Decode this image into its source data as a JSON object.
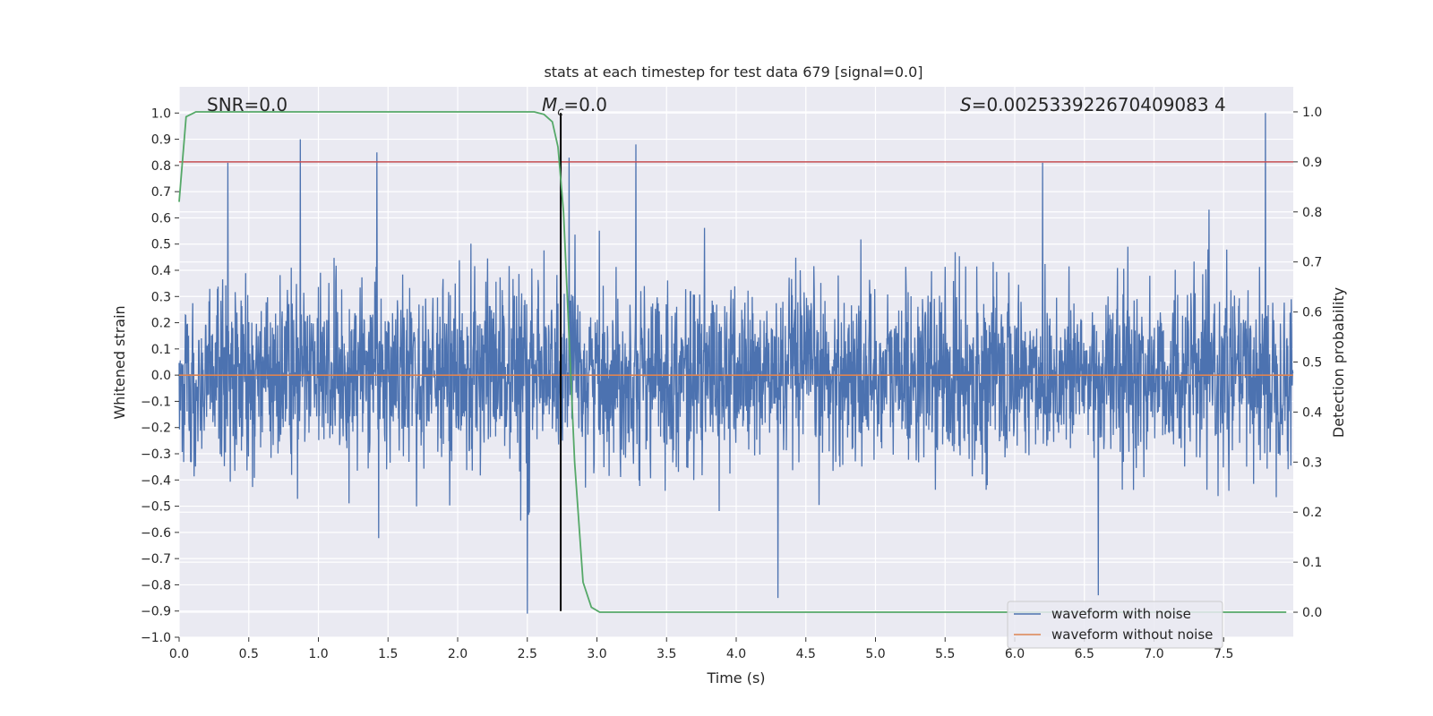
{
  "chart_data": {
    "type": "line",
    "title": "stats at each timestep for test data 679 [signal=0.0]",
    "xlabel": "Time (s)",
    "ylabel_left": "Whitened strain",
    "ylabel_right": "Detection probability",
    "xlim": [
      0.0,
      8.0
    ],
    "ylim_left": [
      -1.0,
      1.1
    ],
    "ylim_right": [
      -0.05,
      1.05
    ],
    "x_ticks": [
      "0.0",
      "0.5",
      "1.0",
      "1.5",
      "2.0",
      "2.5",
      "3.0",
      "3.5",
      "4.0",
      "4.5",
      "5.0",
      "5.5",
      "6.0",
      "6.5",
      "7.0",
      "7.5"
    ],
    "y_left_ticks": [
      "-1.0",
      "-0.9",
      "-0.8",
      "-0.7",
      "-0.6",
      "-0.5",
      "-0.4",
      "-0.3",
      "-0.2",
      "-0.1",
      "0.0",
      "0.1",
      "0.2",
      "0.3",
      "0.4",
      "0.5",
      "0.6",
      "0.7",
      "0.8",
      "0.9",
      "1.0"
    ],
    "y_right_ticks": [
      "0.0",
      "0.1",
      "0.2",
      "0.3",
      "0.4",
      "0.5",
      "0.6",
      "0.7",
      "0.8",
      "0.9",
      "1.0"
    ],
    "grid": true,
    "legend_position": "lower-right",
    "annotations": {
      "snr": "SNR=0.0",
      "mc_symbol": "M",
      "mc_sub": "c",
      "mc_value": "=0.0",
      "s_symbol": "S",
      "s_value": "=0.002533922670409083 4"
    },
    "series": [
      {
        "name": "waveform with noise",
        "axis": "left",
        "color": "#4c72b0",
        "sample_rate": 1024,
        "amplitude_envelope": {
          "typical": 0.3,
          "max": 1.0,
          "min": -0.91
        },
        "notable_peaks": [
          {
            "x": 0.35,
            "y": 0.81
          },
          {
            "x": 0.87,
            "y": 0.9
          },
          {
            "x": 1.42,
            "y": 0.85
          },
          {
            "x": 2.5,
            "y": -0.91
          },
          {
            "x": 2.8,
            "y": 0.83
          },
          {
            "x": 3.28,
            "y": 0.88
          },
          {
            "x": 4.3,
            "y": -0.85
          },
          {
            "x": 6.2,
            "y": 0.81
          },
          {
            "x": 6.6,
            "y": -0.84
          },
          {
            "x": 7.8,
            "y": 1.0
          }
        ]
      },
      {
        "name": "waveform without noise",
        "axis": "left",
        "color": "#dd8452",
        "x": [
          0.0,
          8.0
        ],
        "y": [
          0.0,
          0.0
        ]
      },
      {
        "name": "detection probability",
        "axis": "right",
        "color": "#55a868",
        "x": [
          0.0,
          0.05,
          0.12,
          0.5,
          1.0,
          1.5,
          2.0,
          2.4,
          2.55,
          2.62,
          2.68,
          2.72,
          2.76,
          2.8,
          2.84,
          2.9,
          2.96,
          3.02,
          3.1,
          4.0,
          5.0,
          6.0,
          7.0,
          7.5,
          7.95
        ],
        "y": [
          0.82,
          0.99,
          1.0,
          1.0,
          1.0,
          1.0,
          1.0,
          1.0,
          1.0,
          0.995,
          0.98,
          0.93,
          0.8,
          0.55,
          0.3,
          0.06,
          0.01,
          0.0,
          0.0,
          0.0,
          0.0,
          0.0,
          0.0,
          0.0,
          0.0
        ]
      }
    ],
    "reference_lines": {
      "threshold_right": {
        "y": 0.9,
        "color": "#c44e52"
      },
      "vertical_marker": {
        "x": 2.74,
        "color": "#000000",
        "y_from": -0.9,
        "y_to": 1.0
      }
    }
  }
}
